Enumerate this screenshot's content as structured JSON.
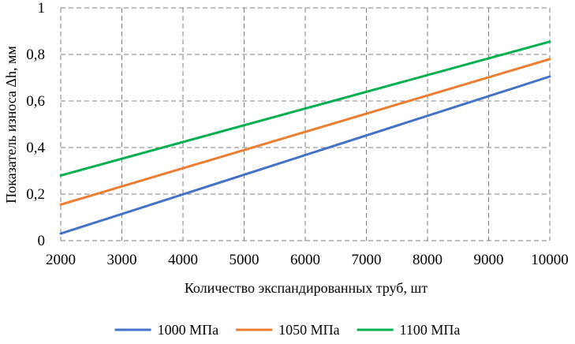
{
  "chart_data": {
    "type": "line",
    "title": "",
    "xlabel": "Количество экспандированных труб, шт",
    "ylabel": "Показатель износа Δh, мм",
    "xlim": [
      2000,
      10000
    ],
    "ylim": [
      0,
      1
    ],
    "x_ticks": [
      2000,
      3000,
      4000,
      5000,
      6000,
      7000,
      8000,
      9000,
      10000
    ],
    "x_tick_labels": [
      "2000",
      "3000",
      "4000",
      "5000",
      "6000",
      "7000",
      "8000",
      "9000",
      "10000"
    ],
    "y_ticks": [
      0,
      0.2,
      0.4,
      0.6,
      0.8,
      1
    ],
    "y_tick_labels": [
      "0",
      "0,2",
      "0,4",
      "0,6",
      "0,8",
      "1"
    ],
    "grid": true,
    "grid_style": "dashed",
    "legend_position": "bottom",
    "series": [
      {
        "name": "1000 МПа",
        "color": "#4472c4",
        "x": [
          2000,
          10000
        ],
        "y": [
          0.03,
          0.705
        ]
      },
      {
        "name": "1050 МПа",
        "color": "#ed7d31",
        "x": [
          2000,
          10000
        ],
        "y": [
          0.155,
          0.78
        ]
      },
      {
        "name": "1100 МПа",
        "color": "#00b050",
        "x": [
          2000,
          10000
        ],
        "y": [
          0.28,
          0.855
        ]
      }
    ]
  }
}
